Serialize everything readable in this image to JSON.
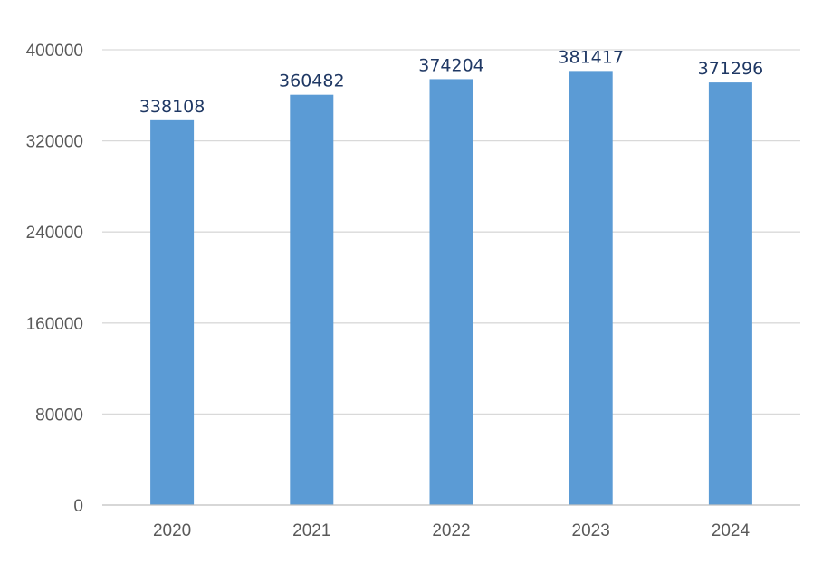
{
  "chart_data": {
    "type": "bar",
    "title": "",
    "xlabel": "",
    "ylabel": "",
    "categories": [
      "2020",
      "2021",
      "2022",
      "2023",
      "2024"
    ],
    "values": [
      338108,
      360482,
      374204,
      381417,
      371296
    ],
    "data_labels": [
      "338108",
      "360482",
      "374204",
      "381417",
      "371296"
    ],
    "ylim": [
      0,
      400000
    ],
    "yticks": [
      0,
      80000,
      160000,
      240000,
      320000,
      400000
    ],
    "ytick_labels": [
      "0",
      "80000",
      "160000",
      "240000",
      "320000",
      "400000"
    ],
    "grid": true,
    "legend": "none",
    "colors": {
      "bar": "#5b9bd5",
      "gridline": "#d9d9d9",
      "axis_line": "#bfbfbf",
      "tick_text": "#595959",
      "data_label_text": "#1f3864"
    }
  }
}
